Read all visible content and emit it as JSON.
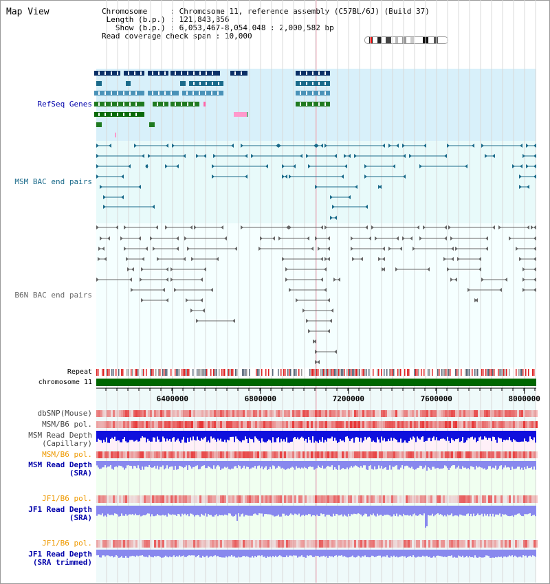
{
  "app": {
    "title": "Map View"
  },
  "info": {
    "chromosome_label": "Chromosome",
    "chromosome_value": "Chromosome 11, reference assembly (C57BL/6J) (Build 37)",
    "length_label": "Length (b.p.)",
    "length_value": "121,843,856",
    "show_label": "Show (b.p.)",
    "show_value": "6,053,467-8,054,048 : 2,000,582 bp",
    "coverage_label": "Read coverage check span",
    "coverage_value": "10,000"
  },
  "tracks": {
    "refseq": "RefSeq Genes",
    "msm_bac": "MSM BAC end pairs",
    "b6n_bac": "B6N BAC end pairs",
    "repeat": "Repeat",
    "chromosome": "chromosome 11",
    "dbsnp": "dbSNP(Mouse)",
    "msm_b6_pol_1": "MSM/B6 pol.",
    "msm_depth_cap_1": "MSM Read Depth",
    "msm_depth_cap_2": "(Capillary)",
    "msm_b6_pol_2": "MSM/B6 pol.",
    "msm_depth_sra_1": "MSM Read Depth",
    "msm_depth_sra_2": "(SRA)",
    "jf1_b6_pol_1": "JF1/B6 pol.",
    "jf1_depth_sra_1": "JF1 Read Depth",
    "jf1_depth_sra_2": "(SRA)",
    "jf1_b6_pol_2": "JF1/B6 pol.",
    "jf1_depth_trim_1": "JF1 Read Depth",
    "jf1_depth_trim_2": "(SRA trimmed)"
  },
  "axis": {
    "ticks": [
      "6400000",
      "6800000",
      "7200000",
      "7600000",
      "8000000"
    ],
    "tick_values": [
      6400000,
      6800000,
      7200000,
      7600000,
      8000000
    ],
    "view_start": 6053467,
    "view_end": 8054048
  },
  "colors": {
    "refseq_bg": "#d8f0fa",
    "bac_bg": "#e8fafa",
    "msm_bac": "#1a6a8a",
    "b6n_bac": "#666666",
    "chromosome": "#006600",
    "pol": "#ee3333",
    "depth_capillary": "#1010dd",
    "depth_sra": "#8888ee",
    "label_blue": "#0000aa",
    "label_orange": "#ee9900"
  }
}
